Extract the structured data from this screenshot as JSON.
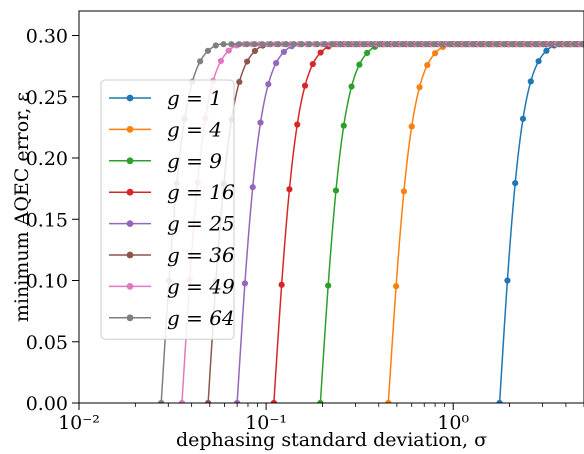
{
  "chart_data": {
    "type": "line",
    "xlabel": "dephasing standard deviation, σ",
    "ylabel": "minimum AQEC error, ε",
    "xscale": "log",
    "xlim": [
      0.01,
      5.0
    ],
    "ylim": [
      0.0,
      0.32
    ],
    "x_ticks": [
      {
        "value": 0.01,
        "label": "10⁻²"
      },
      {
        "value": 0.1,
        "label": "10⁻¹"
      },
      {
        "value": 1,
        "label": "10⁰"
      }
    ],
    "y_ticks": [
      {
        "value": 0.0,
        "label": "0.00"
      },
      {
        "value": 0.05,
        "label": "0.05"
      },
      {
        "value": 0.1,
        "label": "0.10"
      },
      {
        "value": 0.15,
        "label": "0.15"
      },
      {
        "value": 0.2,
        "label": "0.20"
      },
      {
        "value": 0.25,
        "label": "0.25"
      },
      {
        "value": 0.3,
        "label": "0.30"
      }
    ],
    "grid": false,
    "legend_position": "center-left",
    "plateau": 0.2929,
    "series": [
      {
        "name": "g = 1",
        "color": "#1f77b4",
        "onset": 1.77,
        "knee": 3.6
      },
      {
        "name": "g = 4",
        "color": "#ff7f0e",
        "onset": 0.45,
        "knee": 0.95
      },
      {
        "name": "g = 9",
        "color": "#2ca02c",
        "onset": 0.195,
        "knee": 0.41
      },
      {
        "name": "g = 16",
        "color": "#d62728",
        "onset": 0.11,
        "knee": 0.23
      },
      {
        "name": "g = 25",
        "color": "#9467bd",
        "onset": 0.07,
        "knee": 0.145
      },
      {
        "name": "g = 36",
        "color": "#8c564b",
        "onset": 0.049,
        "knee": 0.1
      },
      {
        "name": "g = 49",
        "color": "#e377c2",
        "onset": 0.0355,
        "knee": 0.072
      },
      {
        "name": "g = 64",
        "color": "#7f7f7f",
        "onset": 0.0275,
        "knee": 0.056
      }
    ]
  }
}
